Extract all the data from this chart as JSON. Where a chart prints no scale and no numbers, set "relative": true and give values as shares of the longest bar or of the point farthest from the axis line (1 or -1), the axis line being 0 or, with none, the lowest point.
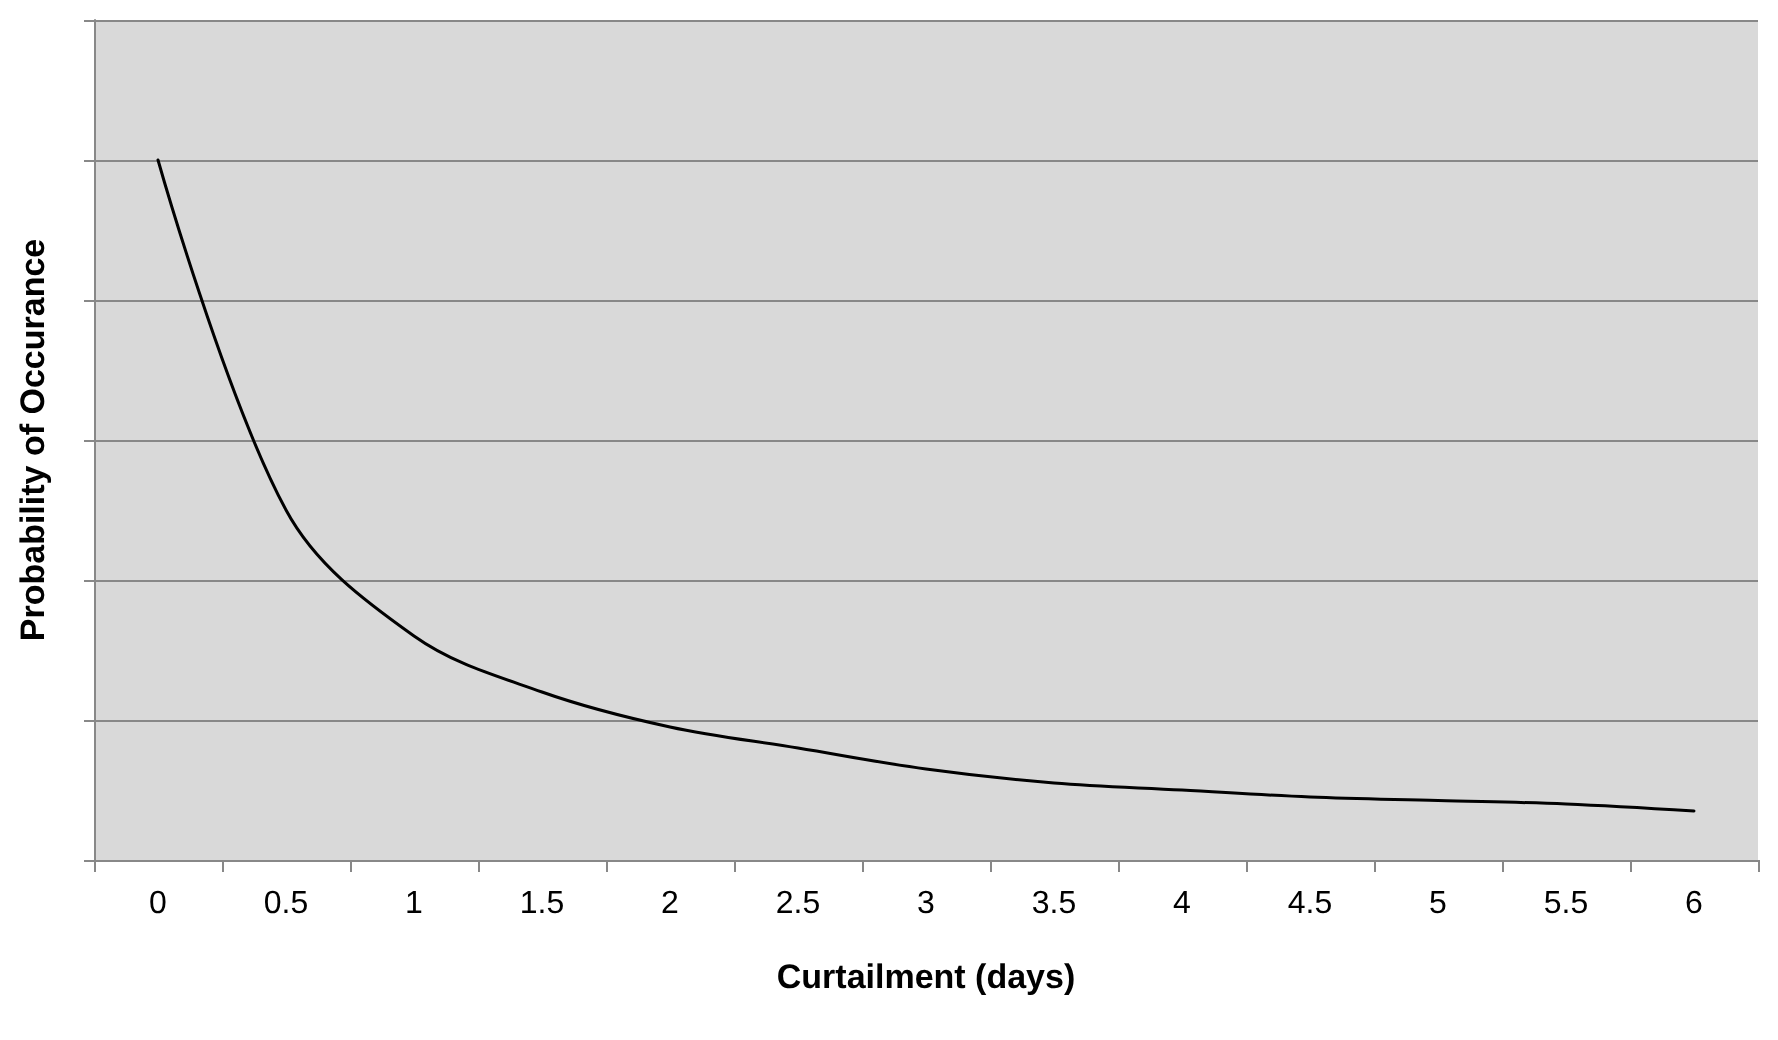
{
  "chart_data": {
    "type": "line",
    "xlabel": "Curtailment (days)",
    "ylabel": "Probability of Occurance",
    "categories": [
      "0",
      "0.5",
      "1",
      "1.5",
      "2",
      "2.5",
      "3",
      "3.5",
      "4",
      "4.5",
      "5",
      "5.5",
      "6"
    ],
    "series": [
      {
        "color": "#000000",
        "values": [
          1,
          0.5,
          0.32,
          0.24,
          0.19,
          0.16,
          0.13,
          0.11,
          0.1,
          0.09,
          0.085,
          0.08,
          0.07
        ]
      }
    ],
    "relative": true,
    "grid": "y",
    "marker": "none",
    "line_style": "solid"
  }
}
